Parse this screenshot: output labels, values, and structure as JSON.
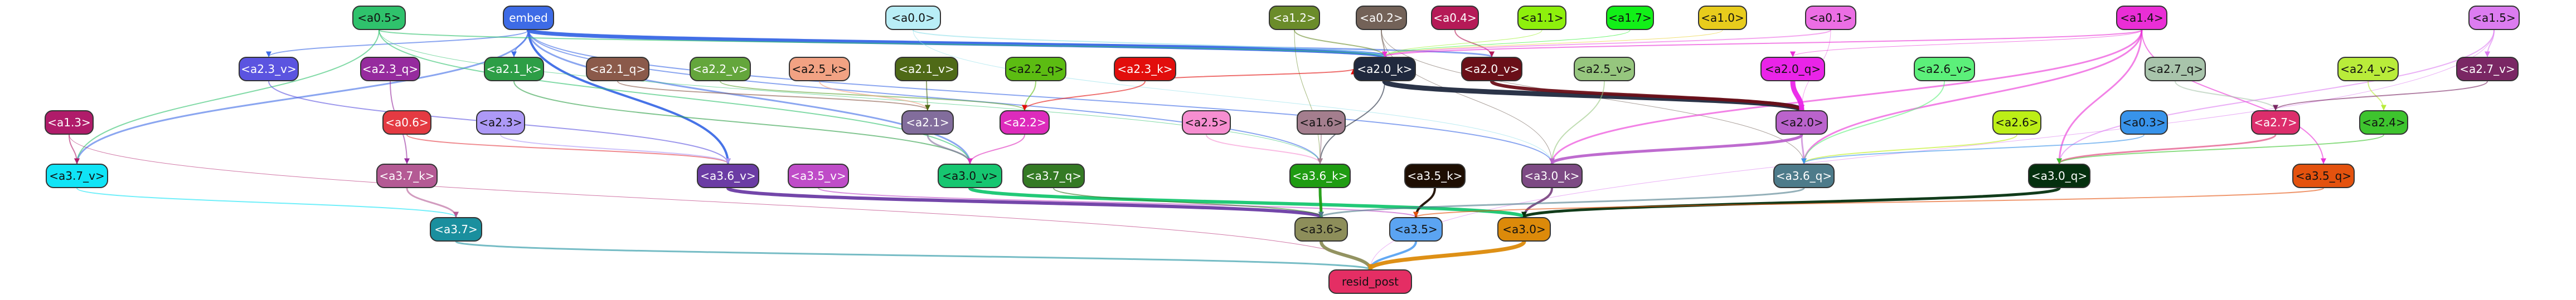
{
  "nodes": [
    {
      "id": "a05",
      "label": "<a0.5>",
      "color": "#2fc26c",
      "text": "#111111"
    },
    {
      "id": "embed",
      "label": "embed",
      "color": "#3d6be6",
      "text": "#ffffff"
    },
    {
      "id": "a00",
      "label": "<a0.0>",
      "color": "#b9eef6",
      "text": "#111111"
    },
    {
      "id": "a12",
      "label": "<a1.2>",
      "color": "#6b8c2a",
      "text": "#ffffff"
    },
    {
      "id": "a02",
      "label": "<a0.2>",
      "color": "#736258",
      "text": "#ffffff"
    },
    {
      "id": "a04",
      "label": "<a0.4>",
      "color": "#b51a57",
      "text": "#ffffff"
    },
    {
      "id": "a11",
      "label": "<a1.1>",
      "color": "#8ef00c",
      "text": "#111111"
    },
    {
      "id": "a17",
      "label": "<a1.7>",
      "color": "#12f018",
      "text": "#111111"
    },
    {
      "id": "a10",
      "label": "<a1.0>",
      "color": "#e8cc1c",
      "text": "#111111"
    },
    {
      "id": "a01",
      "label": "<a0.1>",
      "color": "#ec6ee4",
      "text": "#111111"
    },
    {
      "id": "a14",
      "label": "<a1.4>",
      "color": "#ea2ed6",
      "text": "#111111"
    },
    {
      "id": "a15",
      "label": "<a1.5>",
      "color": "#dc7cf0",
      "text": "#111111"
    },
    {
      "id": "a23v",
      "label": "<a2.3_v>",
      "color": "#5b54e0",
      "text": "#ffffff"
    },
    {
      "id": "a23q",
      "label": "<a2.3_q>",
      "color": "#962b9e",
      "text": "#ffffff"
    },
    {
      "id": "a21k",
      "label": "<a2.1_k>",
      "color": "#2d9e46",
      "text": "#ffffff"
    },
    {
      "id": "a21q",
      "label": "<a2.1_q>",
      "color": "#8b5a4a",
      "text": "#ffffff"
    },
    {
      "id": "a22v",
      "label": "<a2.2_v>",
      "color": "#64a63c",
      "text": "#ffffff"
    },
    {
      "id": "a25k",
      "label": "<a2.5_k>",
      "color": "#f2a283",
      "text": "#111111"
    },
    {
      "id": "a21v",
      "label": "<a2.1_v>",
      "color": "#4f6a17",
      "text": "#ffffff"
    },
    {
      "id": "a22q",
      "label": "<a2.2_q>",
      "color": "#5cbc12",
      "text": "#111111"
    },
    {
      "id": "a23k",
      "label": "<a2.3_k>",
      "color": "#e20e0c",
      "text": "#ffffff"
    },
    {
      "id": "a20k",
      "label": "<a2.0_k>",
      "color": "#20293e",
      "text": "#ffffff"
    },
    {
      "id": "a20v",
      "label": "<a2.0_v>",
      "color": "#6a0f18",
      "text": "#ffffff"
    },
    {
      "id": "a25v",
      "label": "<a2.5_v>",
      "color": "#96c67e",
      "text": "#111111"
    },
    {
      "id": "a20q",
      "label": "<a2.0_q>",
      "color": "#ea24e8",
      "text": "#111111"
    },
    {
      "id": "a26v",
      "label": "<a2.6_v>",
      "color": "#5cf07a",
      "text": "#111111"
    },
    {
      "id": "a27q",
      "label": "<a2.7_q>",
      "color": "#a8c4ab",
      "text": "#111111"
    },
    {
      "id": "a24v",
      "label": "<a2.4_v>",
      "color": "#b9ec3a",
      "text": "#111111"
    },
    {
      "id": "a27v",
      "label": "<a2.7_v>",
      "color": "#7a2764",
      "text": "#ffffff"
    },
    {
      "id": "a13",
      "label": "<a1.3>",
      "color": "#b01c6a",
      "text": "#ffffff"
    },
    {
      "id": "a06",
      "label": "<a0.6>",
      "color": "#e43a42",
      "text": "#ffffff"
    },
    {
      "id": "a23",
      "label": "<a2.3>",
      "color": "#ad99f6",
      "text": "#111111"
    },
    {
      "id": "a21",
      "label": "<a2.1>",
      "color": "#826d9c",
      "text": "#ffffff"
    },
    {
      "id": "a22",
      "label": "<a2.2>",
      "color": "#dd2bbc",
      "text": "#ffffff"
    },
    {
      "id": "a25",
      "label": "<a2.5>",
      "color": "#f68ed0",
      "text": "#111111"
    },
    {
      "id": "a16",
      "label": "<a1.6>",
      "color": "#a47e8e",
      "text": "#111111"
    },
    {
      "id": "a20",
      "label": "<a2.0>",
      "color": "#ba63cc",
      "text": "#111111"
    },
    {
      "id": "a26",
      "label": "<a2.6>",
      "color": "#bcee16",
      "text": "#111111"
    },
    {
      "id": "a03",
      "label": "<a0.3>",
      "color": "#3893ea",
      "text": "#111111"
    },
    {
      "id": "a27",
      "label": "<a2.7>",
      "color": "#dc2e6c",
      "text": "#ffffff"
    },
    {
      "id": "a24",
      "label": "<a2.4>",
      "color": "#3ec42e",
      "text": "#111111"
    },
    {
      "id": "a37v",
      "label": "<a3.7_v>",
      "color": "#10e4f6",
      "text": "#111111"
    },
    {
      "id": "a37k",
      "label": "<a3.7_k>",
      "color": "#b45a94",
      "text": "#ffffff"
    },
    {
      "id": "a36v",
      "label": "<a3.6_v>",
      "color": "#6b3ca4",
      "text": "#ffffff"
    },
    {
      "id": "a35v",
      "label": "<a3.5_v>",
      "color": "#bf4cc8",
      "text": "#ffffff"
    },
    {
      "id": "a30v",
      "label": "<a3.0_v>",
      "color": "#16c670",
      "text": "#111111"
    },
    {
      "id": "a37q",
      "label": "<a3.7_q>",
      "color": "#347a24",
      "text": "#ffffff"
    },
    {
      "id": "a36k",
      "label": "<a3.6_k>",
      "color": "#1f9c12",
      "text": "#ffffff"
    },
    {
      "id": "a35k",
      "label": "<a3.5_k>",
      "color": "#1e0e02",
      "text": "#ffffff"
    },
    {
      "id": "a30k",
      "label": "<a3.0_k>",
      "color": "#7d4a84",
      "text": "#ffffff"
    },
    {
      "id": "a36q",
      "label": "<a3.6_q>",
      "color": "#4d7b8a",
      "text": "#ffffff"
    },
    {
      "id": "a30q",
      "label": "<a3.0_q>",
      "color": "#04300e",
      "text": "#ffffff"
    },
    {
      "id": "a35q",
      "label": "<a3.5_q>",
      "color": "#e4520e",
      "text": "#111111"
    },
    {
      "id": "a37",
      "label": "<a3.7>",
      "color": "#1a8f9e",
      "text": "#ffffff"
    },
    {
      "id": "a36",
      "label": "<a3.6>",
      "color": "#8d8e5a",
      "text": "#111111"
    },
    {
      "id": "a35",
      "label": "<a3.5>",
      "color": "#5ba4f2",
      "text": "#111111"
    },
    {
      "id": "a30",
      "label": "<a3.0>",
      "color": "#dc8a0a",
      "text": "#111111"
    },
    {
      "id": "resid_post",
      "label": "resid_post",
      "color": "#e42e64",
      "text": "#111111"
    }
  ]
}
